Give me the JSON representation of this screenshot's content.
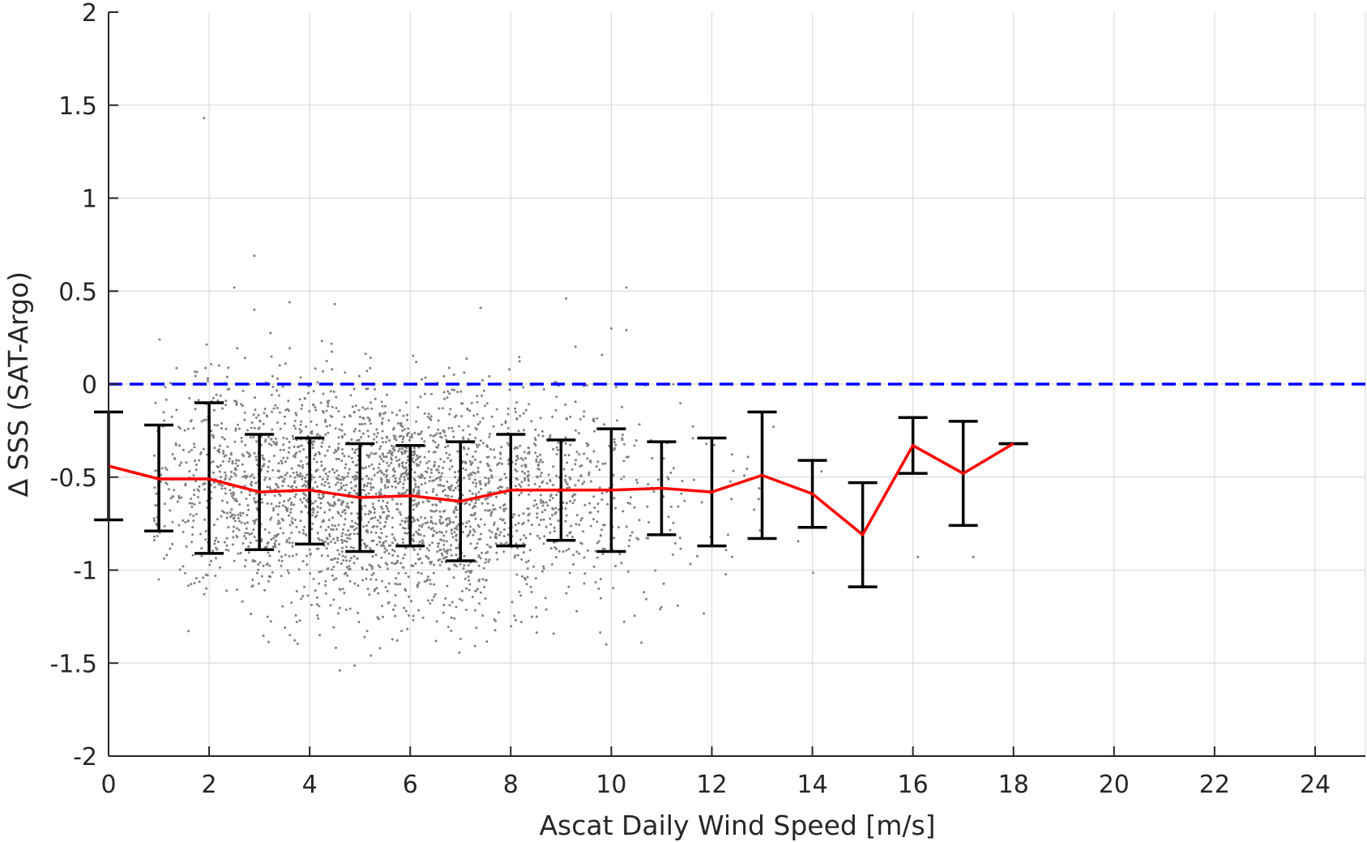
{
  "chart_data": {
    "type": "scatter",
    "xlabel": "Ascat Daily Wind Speed [m/s]",
    "ylabel": "∆ SSS (SAT-Argo)",
    "xlim": [
      0,
      25
    ],
    "ylim": [
      -2,
      2
    ],
    "xticks": [
      0,
      2,
      4,
      6,
      8,
      10,
      12,
      14,
      16,
      18,
      20,
      22,
      24
    ],
    "yticks": [
      2,
      1.5,
      1,
      0.5,
      0,
      -0.5,
      -1,
      -1.5,
      -2
    ],
    "ytick_labels": [
      "2",
      "1.5",
      "1",
      "0.5",
      "0",
      "-0.5",
      "-1",
      "-1.5",
      "-2"
    ],
    "grid": true,
    "reference_line": {
      "y": 0,
      "color": "#0000ff",
      "style": "dashed"
    },
    "scatter": {
      "color": "#808080",
      "approx_count": 3000,
      "x_range": [
        0,
        17
      ],
      "center_y": -0.55,
      "spread_y": 0.3,
      "outliers": [
        [
          1.9,
          1.43
        ],
        [
          2.9,
          0.69
        ],
        [
          2.5,
          0.52
        ],
        [
          10.3,
          0.52
        ],
        [
          9.1,
          0.46
        ],
        [
          4.5,
          0.43
        ],
        [
          3.6,
          0.44
        ],
        [
          7.4,
          0.41
        ],
        [
          2.9,
          0.4
        ],
        [
          10.0,
          0.3
        ],
        [
          10.3,
          0.29
        ],
        [
          4.6,
          -1.54
        ],
        [
          5.4,
          -1.42
        ],
        [
          9.9,
          -1.4
        ],
        [
          10.6,
          -1.39
        ],
        [
          7.0,
          -1.37
        ],
        [
          4.2,
          -1.35
        ],
        [
          1.0,
          -1.05
        ],
        [
          16.1,
          -0.93
        ],
        [
          17.2,
          -0.93
        ]
      ]
    },
    "series": [
      {
        "color": "#ff0000",
        "x": [
          0,
          1,
          2,
          3,
          4,
          5,
          6,
          7,
          8,
          9,
          10,
          11,
          12,
          13,
          14,
          15,
          16,
          17,
          18
        ],
        "mean": [
          -0.44,
          -0.51,
          -0.51,
          -0.58,
          -0.57,
          -0.61,
          -0.6,
          -0.63,
          -0.57,
          -0.57,
          -0.57,
          -0.56,
          -0.58,
          -0.49,
          -0.59,
          -0.81,
          -0.33,
          -0.48,
          -0.32
        ],
        "lower": [
          -0.73,
          -0.79,
          -0.91,
          -0.89,
          -0.86,
          -0.9,
          -0.87,
          -0.95,
          -0.87,
          -0.84,
          -0.9,
          -0.81,
          -0.87,
          -0.83,
          -0.77,
          -1.09,
          -0.48,
          -0.76,
          -0.32
        ],
        "upper": [
          -0.15,
          -0.22,
          -0.1,
          -0.27,
          -0.29,
          -0.32,
          -0.33,
          -0.31,
          -0.27,
          -0.3,
          -0.24,
          -0.31,
          -0.29,
          -0.15,
          -0.41,
          -0.53,
          -0.18,
          -0.2,
          -0.32
        ]
      }
    ]
  }
}
